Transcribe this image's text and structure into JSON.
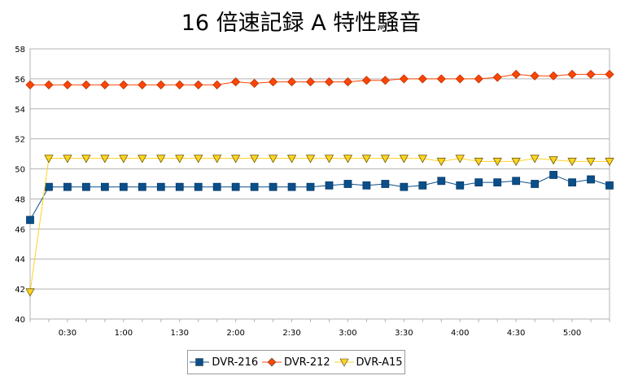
{
  "chart_data": {
    "type": "line",
    "title": "16 倍速記録 A 特性騒音",
    "xlabel": "",
    "ylabel": "",
    "ylim": [
      40,
      58
    ],
    "yticks": [
      40,
      42,
      44,
      46,
      48,
      50,
      52,
      54,
      56,
      58
    ],
    "xticks": [
      {
        "label": "0:30",
        "index": 2
      },
      {
        "label": "1:00",
        "index": 5
      },
      {
        "label": "1:30",
        "index": 8
      },
      {
        "label": "2:00",
        "index": 11
      },
      {
        "label": "2:30",
        "index": 14
      },
      {
        "label": "3:00",
        "index": 17
      },
      {
        "label": "3:30",
        "index": 20
      },
      {
        "label": "4:00",
        "index": 23
      },
      {
        "label": "4:30",
        "index": 26
      },
      {
        "label": "5:00",
        "index": 29
      }
    ],
    "point_count": 32,
    "grid": true,
    "legend_position": "bottom",
    "series": [
      {
        "name": "DVR-216",
        "color": "#0b4f8a",
        "marker": "square",
        "values": [
          46.6,
          48.8,
          48.8,
          48.8,
          48.8,
          48.8,
          48.8,
          48.8,
          48.8,
          48.8,
          48.8,
          48.8,
          48.8,
          48.8,
          48.8,
          48.8,
          48.9,
          49.0,
          48.9,
          49.0,
          48.8,
          48.9,
          49.2,
          48.9,
          49.1,
          49.1,
          49.2,
          49.0,
          49.6,
          49.1,
          49.3,
          48.9
        ]
      },
      {
        "name": "DVR-212",
        "color": "#ff4500",
        "marker": "diamond",
        "values": [
          55.6,
          55.6,
          55.6,
          55.6,
          55.6,
          55.6,
          55.6,
          55.6,
          55.6,
          55.6,
          55.6,
          55.8,
          55.7,
          55.8,
          55.8,
          55.8,
          55.8,
          55.8,
          55.9,
          55.9,
          56.0,
          56.0,
          56.0,
          56.0,
          56.0,
          56.1,
          56.3,
          56.2,
          56.2,
          56.3,
          56.3,
          56.3
        ]
      },
      {
        "name": "DVR-A15",
        "color": "#ffd320",
        "marker": "triangle-down",
        "values": [
          41.8,
          50.7,
          50.7,
          50.7,
          50.7,
          50.7,
          50.7,
          50.7,
          50.7,
          50.7,
          50.7,
          50.7,
          50.7,
          50.7,
          50.7,
          50.7,
          50.7,
          50.7,
          50.7,
          50.7,
          50.7,
          50.7,
          50.5,
          50.7,
          50.5,
          50.5,
          50.5,
          50.7,
          50.6,
          50.5,
          50.5,
          50.5
        ]
      }
    ]
  }
}
